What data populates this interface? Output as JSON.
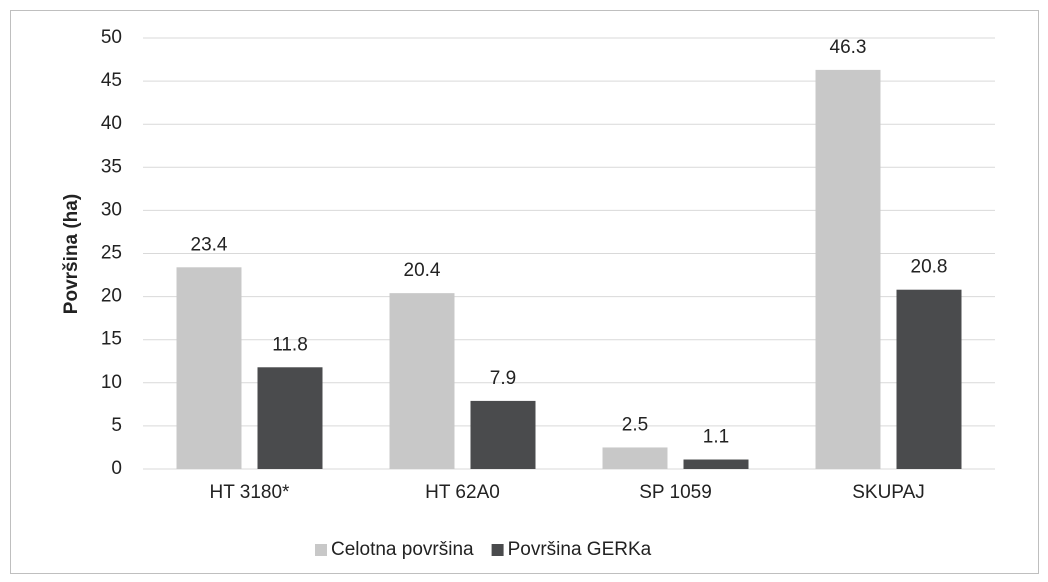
{
  "chart_data": {
    "type": "bar",
    "y_label": "Površina (ha)",
    "categories": [
      "HT 3180*",
      "HT 62A0",
      "SP 1059",
      "SKUPAJ"
    ],
    "series": [
      {
        "name": "Celotna površina",
        "color": "#c8c8c8",
        "values": [
          23.4,
          20.4,
          2.5,
          46.3
        ]
      },
      {
        "name": "Površina GERKa",
        "color": "#4a4b4d",
        "values": [
          11.8,
          7.9,
          1.1,
          20.8
        ]
      }
    ],
    "ylim": [
      0,
      50
    ],
    "yticks": [
      0,
      5,
      10,
      15,
      20,
      25,
      30,
      35,
      40,
      45,
      50
    ],
    "grid": true,
    "legend": "bottom"
  }
}
